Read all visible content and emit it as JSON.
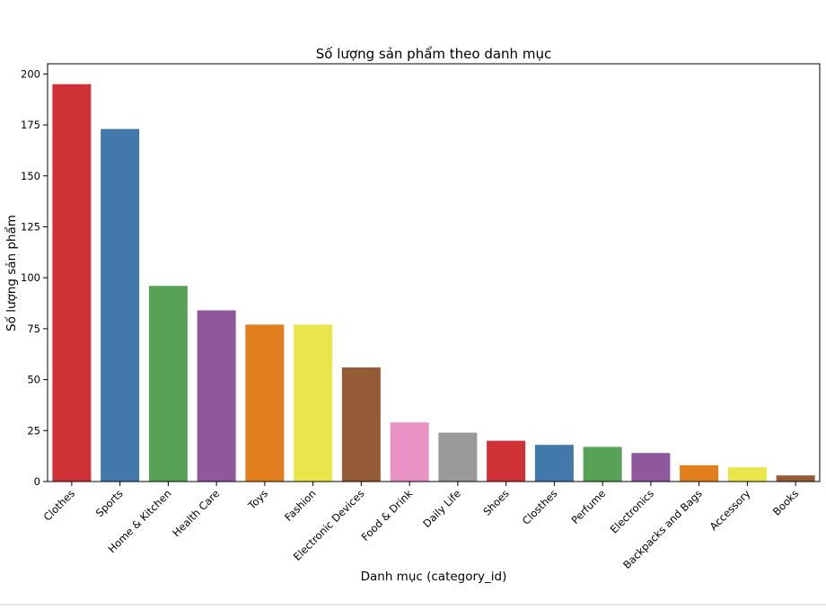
{
  "chart_data": {
    "type": "bar",
    "title": "Số lượng sản phẩm theo danh mục",
    "xlabel": "Danh mục (category_id)",
    "ylabel": "Số lượng sản phẩm",
    "ylim": [
      0,
      205
    ],
    "yticks": [
      0,
      25,
      50,
      75,
      100,
      125,
      150,
      175,
      200
    ],
    "grid": false,
    "categories": [
      "Clothes",
      "Sports",
      "Home & Kitchen",
      "Health Care",
      "Toys",
      "Fashion",
      "Electronic Devices",
      "Food & Drink",
      "Daily Life",
      "Shoes",
      "Closthes",
      "Perfume",
      "Electronics",
      "Backpacks and Bags",
      "Accessory",
      "Books"
    ],
    "values": [
      195,
      173,
      96,
      84,
      77,
      77,
      56,
      29,
      24,
      20,
      18,
      17,
      14,
      8,
      7,
      3
    ],
    "colors": [
      "#ce3236",
      "#4279ab",
      "#57a257",
      "#8f589d",
      "#e17e1e",
      "#e9e64c",
      "#955b37",
      "#e893c3",
      "#999999",
      "#ce3236",
      "#4279ab",
      "#57a257",
      "#8f589d",
      "#e17e1e",
      "#e9e64c",
      "#955b37"
    ]
  }
}
